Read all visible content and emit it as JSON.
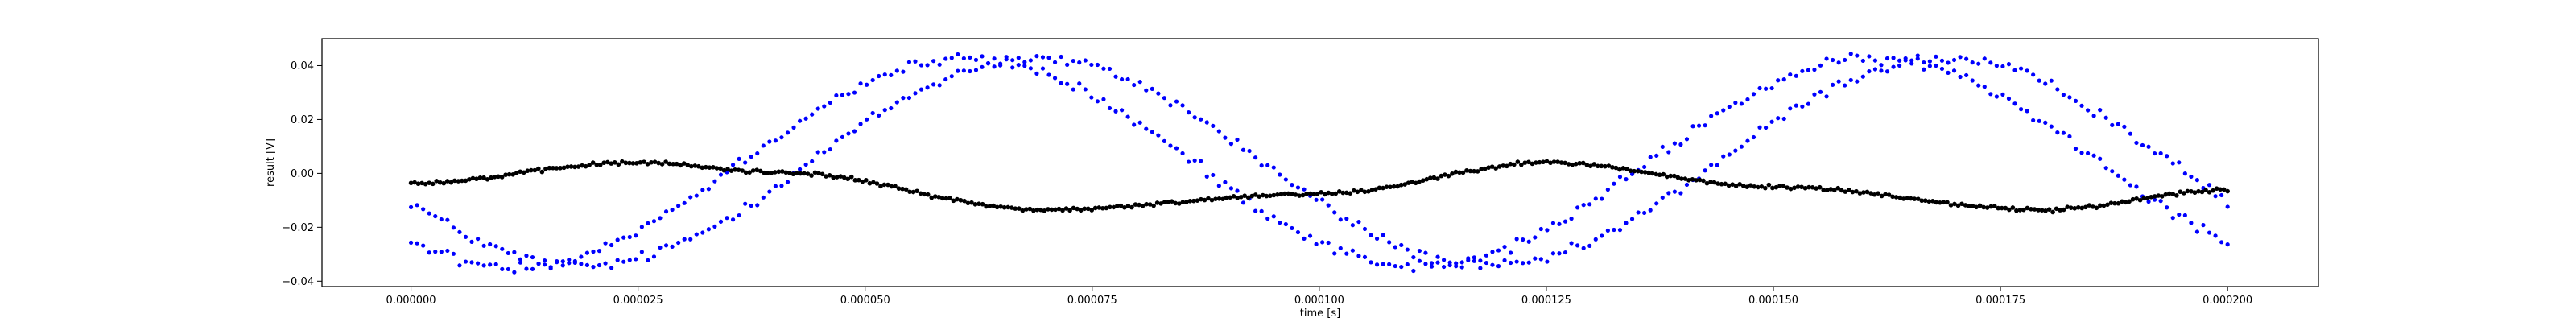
{
  "chart_data": {
    "type": "scatter",
    "xlabel": "time [s]",
    "ylabel": "result [V]",
    "xlim": [
      -9.8e-06,
      0.00021
    ],
    "ylim": [
      -0.042,
      0.05
    ],
    "xticks": [
      "0.000000",
      "0.000025",
      "0.000050",
      "0.000075",
      "0.000100",
      "0.000125",
      "0.000150",
      "0.000175",
      "0.000200"
    ],
    "xtick_values": [
      0,
      2.5e-05,
      5e-05,
      7.5e-05,
      0.0001,
      0.000125,
      0.00015,
      0.000175,
      0.0002
    ],
    "yticks": [
      "−0.04",
      "−0.02",
      "0.00",
      "0.02",
      "0.04"
    ],
    "ytick_values": [
      -0.04,
      -0.02,
      0,
      0.02,
      0.04
    ],
    "grid": false,
    "series": [
      {
        "color": "#0000ff",
        "x_range": [
          0,
          0.0002
        ],
        "points_per_track": 300,
        "model": "sine",
        "amplitude": 0.0385,
        "offset": 0.004,
        "period_s": 0.0001,
        "peak_time_s": 6.5e-05,
        "track_phase_shift_s": 3.8e-06,
        "noise_v": 0.0022
      },
      {
        "color": "#000000",
        "x_range": [
          0,
          0.0002
        ],
        "points_per_track": 500,
        "model": "wave",
        "keypoints": [
          [
            0,
            -0.0035
          ],
          [
            2.5e-05,
            0.004
          ],
          [
            4e-05,
            0.0005
          ],
          [
            7e-05,
            -0.0135
          ],
          [
            0.0001,
            -0.0075
          ],
          [
            0.000125,
            0.004
          ],
          [
            0.00015,
            -0.005
          ],
          [
            0.00018,
            -0.0135
          ],
          [
            0.0002,
            -0.006
          ]
        ],
        "noise_v": 0.0007
      }
    ]
  }
}
